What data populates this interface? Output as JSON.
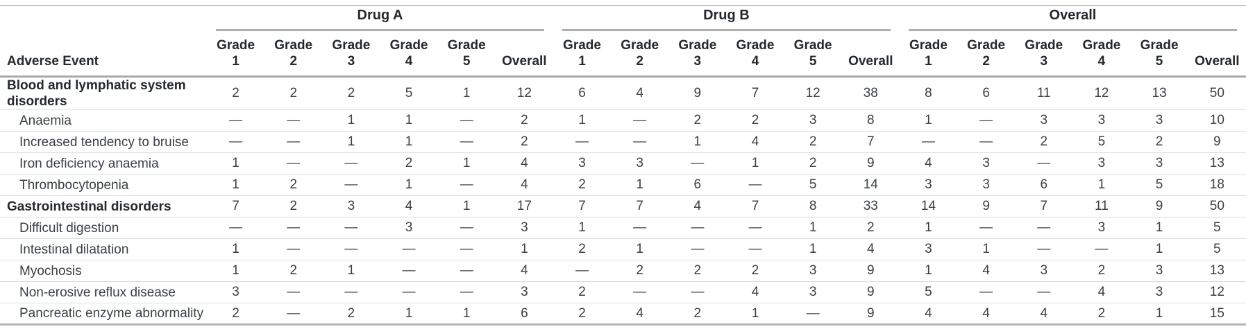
{
  "chart_data": {
    "type": "table",
    "row_header": "Adverse Event",
    "column_groups": [
      "Drug A",
      "Drug B",
      "Overall"
    ],
    "sub_columns": [
      "Grade 1",
      "Grade 2",
      "Grade 3",
      "Grade 4",
      "Grade 5",
      "Overall"
    ],
    "empty_cell_symbol": "—",
    "rows": [
      {
        "label": "Blood and lymphatic system disorders",
        "group": true,
        "values": [
          "2",
          "2",
          "2",
          "5",
          "1",
          "12",
          "6",
          "4",
          "9",
          "7",
          "12",
          "38",
          "8",
          "6",
          "11",
          "12",
          "13",
          "50"
        ]
      },
      {
        "label": "Anaemia",
        "group": false,
        "values": [
          "—",
          "—",
          "1",
          "1",
          "—",
          "2",
          "1",
          "—",
          "2",
          "2",
          "3",
          "8",
          "1",
          "—",
          "3",
          "3",
          "3",
          "10"
        ]
      },
      {
        "label": "Increased tendency to bruise",
        "group": false,
        "values": [
          "—",
          "—",
          "1",
          "1",
          "—",
          "2",
          "—",
          "—",
          "1",
          "4",
          "2",
          "7",
          "—",
          "—",
          "2",
          "5",
          "2",
          "9"
        ]
      },
      {
        "label": "Iron deficiency anaemia",
        "group": false,
        "values": [
          "1",
          "—",
          "—",
          "2",
          "1",
          "4",
          "3",
          "3",
          "—",
          "1",
          "2",
          "9",
          "4",
          "3",
          "—",
          "3",
          "3",
          "13"
        ]
      },
      {
        "label": "Thrombocytopenia",
        "group": false,
        "values": [
          "1",
          "2",
          "—",
          "1",
          "—",
          "4",
          "2",
          "1",
          "6",
          "—",
          "5",
          "14",
          "3",
          "3",
          "6",
          "1",
          "5",
          "18"
        ]
      },
      {
        "label": "Gastrointestinal disorders",
        "group": true,
        "values": [
          "7",
          "2",
          "3",
          "4",
          "1",
          "17",
          "7",
          "7",
          "4",
          "7",
          "8",
          "33",
          "14",
          "9",
          "7",
          "11",
          "9",
          "50"
        ]
      },
      {
        "label": "Difficult digestion",
        "group": false,
        "values": [
          "—",
          "—",
          "—",
          "3",
          "—",
          "3",
          "1",
          "—",
          "—",
          "—",
          "1",
          "2",
          "1",
          "—",
          "—",
          "3",
          "1",
          "5"
        ]
      },
      {
        "label": "Intestinal dilatation",
        "group": false,
        "values": [
          "1",
          "—",
          "—",
          "—",
          "—",
          "1",
          "2",
          "1",
          "—",
          "—",
          "1",
          "4",
          "3",
          "1",
          "—",
          "—",
          "1",
          "5"
        ]
      },
      {
        "label": "Myochosis",
        "group": false,
        "values": [
          "1",
          "2",
          "1",
          "—",
          "—",
          "4",
          "—",
          "2",
          "2",
          "2",
          "3",
          "9",
          "1",
          "4",
          "3",
          "2",
          "3",
          "13"
        ]
      },
      {
        "label": "Non-erosive reflux disease",
        "group": false,
        "values": [
          "3",
          "—",
          "—",
          "—",
          "—",
          "3",
          "2",
          "—",
          "—",
          "4",
          "3",
          "9",
          "5",
          "—",
          "—",
          "4",
          "3",
          "12"
        ]
      },
      {
        "label": "Pancreatic enzyme abnormality",
        "group": false,
        "values": [
          "2",
          "—",
          "2",
          "1",
          "1",
          "6",
          "2",
          "4",
          "2",
          "1",
          "—",
          "9",
          "4",
          "4",
          "4",
          "2",
          "1",
          "15"
        ]
      }
    ],
    "colors": {
      "text_body": "#3a4046",
      "text_header": "#24292e",
      "rule_top": "#c8c8c8",
      "rule_header": "#a9a9a9",
      "rule_spanner": "#aeaeae",
      "rule_row": "#dcdcdc",
      "rule_bottom": "#b3b3b3",
      "background": "#ffffff"
    }
  }
}
